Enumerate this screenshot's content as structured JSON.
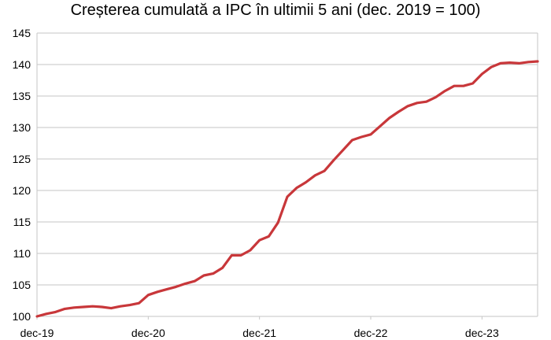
{
  "chart_data": {
    "type": "line",
    "title": "Creșterea cumulată a IPC în ultimii 5 ani (dec. 2019 = 100)",
    "xlabel": "",
    "ylabel": "",
    "ylim": [
      100,
      145
    ],
    "yticks": [
      100,
      105,
      110,
      115,
      120,
      125,
      130,
      135,
      140,
      145
    ],
    "xtick_labels": [
      "dec-19",
      "dec-20",
      "dec-21",
      "dec-22",
      "dec-23"
    ],
    "grid": true,
    "legend": "none",
    "series": [
      {
        "color": "#c8373a",
        "x": [
          "2019-12",
          "2020-01",
          "2020-02",
          "2020-03",
          "2020-04",
          "2020-05",
          "2020-06",
          "2020-07",
          "2020-08",
          "2020-09",
          "2020-10",
          "2020-11",
          "2020-12",
          "2021-01",
          "2021-02",
          "2021-03",
          "2021-04",
          "2021-05",
          "2021-06",
          "2021-07",
          "2021-08",
          "2021-09",
          "2021-10",
          "2021-11",
          "2021-12",
          "2022-01",
          "2022-02",
          "2022-03",
          "2022-04",
          "2022-05",
          "2022-06",
          "2022-07",
          "2022-08",
          "2022-09",
          "2022-10",
          "2022-11",
          "2022-12",
          "2023-01",
          "2023-02",
          "2023-03",
          "2023-04",
          "2023-05",
          "2023-06",
          "2023-07",
          "2023-08",
          "2023-09",
          "2023-10",
          "2023-11",
          "2023-12",
          "2024-01",
          "2024-02",
          "2024-03",
          "2024-04",
          "2024-05",
          "2024-06"
        ],
        "values": [
          100.0,
          100.4,
          100.7,
          101.2,
          101.4,
          101.5,
          101.6,
          101.5,
          101.3,
          101.6,
          101.8,
          102.1,
          103.4,
          103.9,
          104.3,
          104.7,
          105.2,
          105.6,
          106.5,
          106.8,
          107.7,
          109.7,
          109.7,
          110.5,
          112.1,
          112.7,
          114.9,
          119.0,
          120.4,
          121.3,
          122.4,
          123.1,
          124.8,
          126.4,
          128.0,
          128.5,
          128.9,
          130.2,
          131.5,
          132.5,
          133.4,
          133.9,
          134.1,
          134.8,
          135.8,
          136.6,
          136.6,
          137.0,
          138.5,
          139.6,
          140.2,
          140.3,
          140.2,
          140.4,
          140.5
        ]
      }
    ]
  }
}
